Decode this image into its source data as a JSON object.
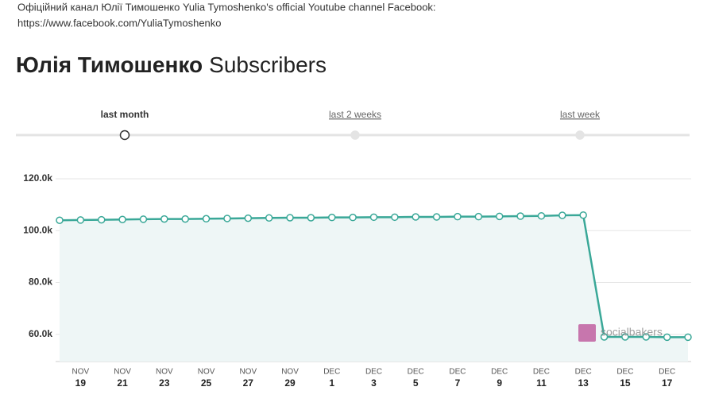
{
  "header": {
    "description": "Офіційний канал Юлії Тимошенко Yulia Tymoshenko's official Youtube channel Facebook:",
    "link": "https://www.facebook.com/YuliaTymoshenko"
  },
  "tabs": [
    "last month",
    "last 2 weeks",
    "last week"
  ],
  "watermark": "socialbakers",
  "chart_data": {
    "type": "line",
    "title": {
      "name": "Юлія Тимошенко",
      "metric": "Subscribers"
    },
    "categories": [
      null,
      {
        "month": "NOV",
        "day": "19"
      },
      null,
      {
        "month": "NOV",
        "day": "21"
      },
      null,
      {
        "month": "NOV",
        "day": "23"
      },
      null,
      {
        "month": "NOV",
        "day": "25"
      },
      null,
      {
        "month": "NOV",
        "day": "27"
      },
      null,
      {
        "month": "NOV",
        "day": "29"
      },
      null,
      {
        "month": "DEC",
        "day": "1"
      },
      null,
      {
        "month": "DEC",
        "day": "3"
      },
      null,
      {
        "month": "DEC",
        "day": "5"
      },
      null,
      {
        "month": "DEC",
        "day": "7"
      },
      null,
      {
        "month": "DEC",
        "day": "9"
      },
      null,
      {
        "month": "DEC",
        "day": "11"
      },
      null,
      {
        "month": "DEC",
        "day": "13"
      },
      null,
      {
        "month": "DEC",
        "day": "15"
      },
      null,
      {
        "month": "DEC",
        "day": "17"
      },
      null
    ],
    "series": [
      {
        "name": "Subscribers",
        "color": "#3aa898",
        "values": [
          104000,
          104100,
          104200,
          104300,
          104400,
          104500,
          104500,
          104600,
          104700,
          104800,
          104900,
          105000,
          105000,
          105100,
          105100,
          105200,
          105200,
          105300,
          105300,
          105400,
          105400,
          105500,
          105600,
          105700,
          105900,
          106000,
          59000,
          59000,
          59000,
          58900,
          58900
        ]
      }
    ],
    "ylim": [
      49500,
      124000
    ],
    "yticks": [
      {
        "value": 60000,
        "label": "60.0k"
      },
      {
        "value": 80000,
        "label": "80.0k"
      },
      {
        "value": 100000,
        "label": "100.0k"
      },
      {
        "value": 120000,
        "label": "120.0k"
      }
    ],
    "grid": true
  }
}
